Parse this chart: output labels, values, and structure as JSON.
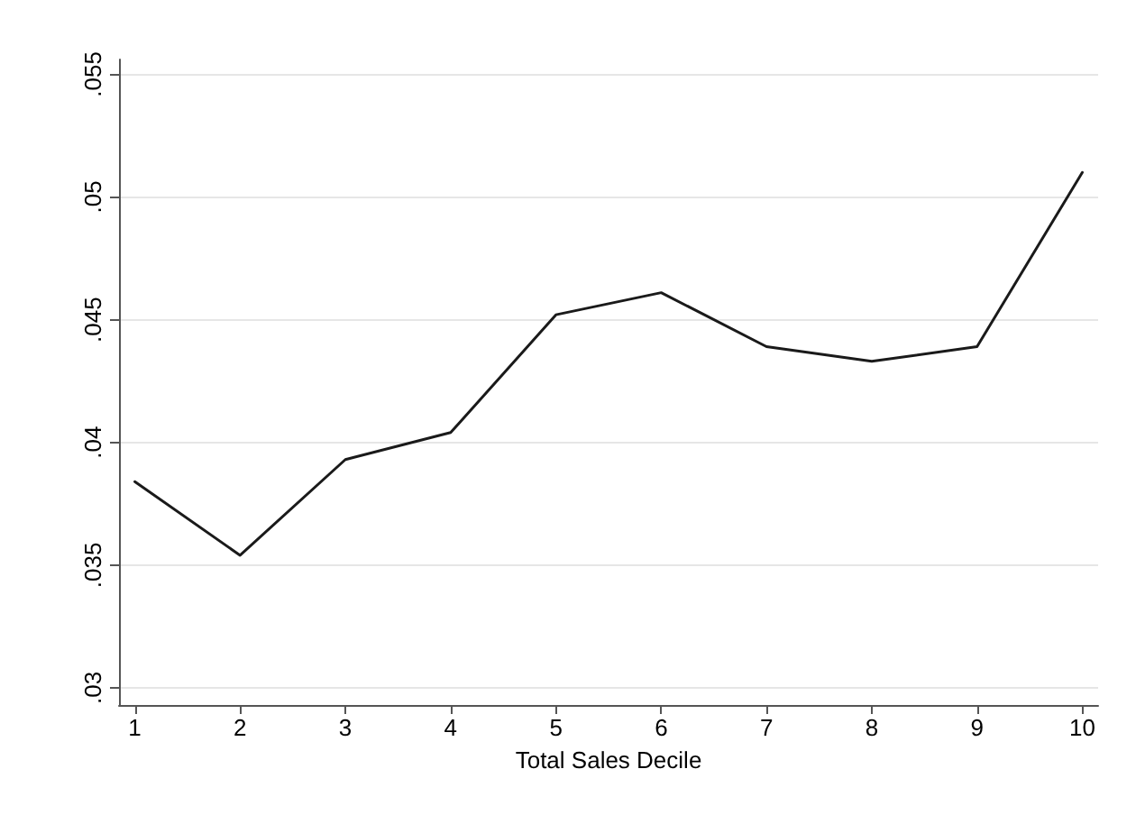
{
  "chart_data": {
    "type": "line",
    "xlabel": "Total Sales Decile",
    "x": [
      1,
      2,
      3,
      4,
      5,
      6,
      7,
      8,
      9,
      10
    ],
    "series": [
      {
        "color": "#1a1a1a",
        "values": [
          0.0384,
          0.0354,
          0.0393,
          0.0404,
          0.0452,
          0.0461,
          0.0439,
          0.0433,
          0.0439,
          0.051
        ]
      }
    ],
    "xlim": [
      0.85,
      10.15
    ],
    "xticks": [
      1,
      2,
      3,
      4,
      5,
      6,
      7,
      8,
      9,
      10
    ],
    "ylim": [
      0.0293,
      0.0556
    ],
    "yticks": [
      {
        "value": 0.03,
        "label": ".03"
      },
      {
        "value": 0.035,
        "label": ".035"
      },
      {
        "value": 0.04,
        "label": ".04"
      },
      {
        "value": 0.045,
        "label": ".045"
      },
      {
        "value": 0.05,
        "label": ".05"
      },
      {
        "value": 0.055,
        "label": ".055"
      }
    ],
    "grid": "y",
    "marker": "none",
    "line_style": "solid"
  }
}
